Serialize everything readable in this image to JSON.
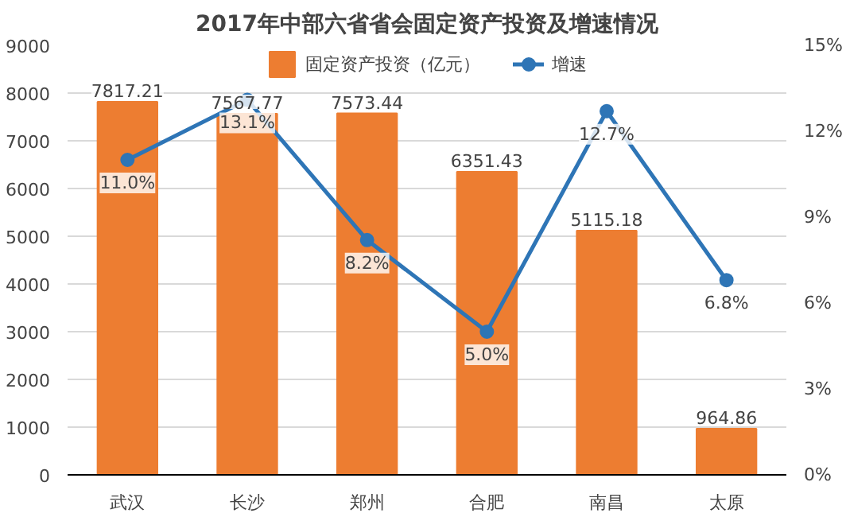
{
  "chart_data": {
    "type": "bar",
    "title": "2017年中部六省省会固定资产投资及增速情况",
    "categories": [
      "武汉",
      "长沙",
      "郑州",
      "合肥",
      "南昌",
      "太原"
    ],
    "series": [
      {
        "name": "固定资产投资（亿元）",
        "color": "#ed7d31",
        "values": [
          7817.21,
          7567.77,
          7573.44,
          6351.43,
          5115.18,
          964.86
        ],
        "value_labels": [
          "7817.21",
          "7567.77",
          "7573.44",
          "6351.43",
          "5115.18",
          "964.86"
        ]
      },
      {
        "name": "增速",
        "type": "line",
        "axis": "y2",
        "color": "#2e75b6",
        "values": [
          11.0,
          13.1,
          8.2,
          5.0,
          12.7,
          6.8
        ],
        "value_labels": [
          "11.0%",
          "13.1%",
          "8.2%",
          "5.0%",
          "12.7%",
          "6.8%"
        ]
      }
    ],
    "ylim": [
      0,
      9000
    ],
    "yticks": [
      0,
      1000,
      2000,
      3000,
      4000,
      5000,
      6000,
      7000,
      8000,
      9000
    ],
    "y2lim": [
      0,
      15
    ],
    "y2ticks": [
      {
        "value": 0,
        "label": "0%"
      },
      {
        "value": 3,
        "label": "3%"
      },
      {
        "value": 6,
        "label": "6%"
      },
      {
        "value": 9,
        "label": "9%"
      },
      {
        "value": 12,
        "label": "12%"
      },
      {
        "value": 15,
        "label": "15%"
      }
    ],
    "grid": "y",
    "legend": "top",
    "marker": "circle"
  }
}
